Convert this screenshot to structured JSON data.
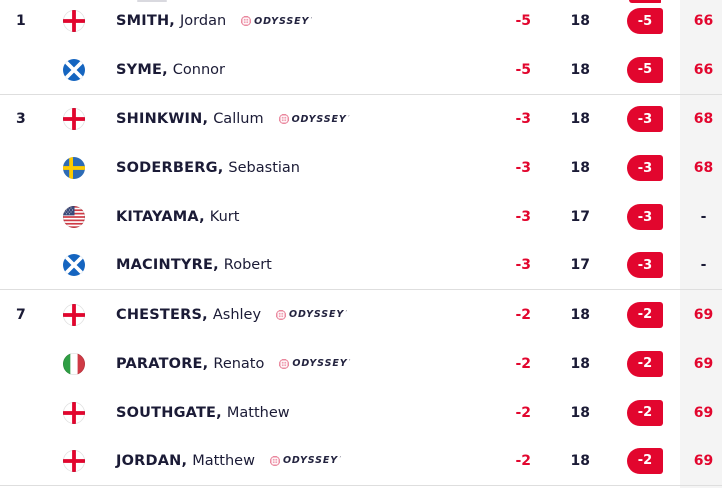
{
  "theme": {
    "accent_red": "#e2062e",
    "text_navy": "#1b1b36",
    "round_column_bg": "#f4f4f4",
    "separator": "#dedede"
  },
  "brand": {
    "odyssey_label": "ODYSSEY",
    "odyssey_tm": "’"
  },
  "rows": [
    {
      "pos": "1",
      "flag": "england",
      "surname": "SMITH,",
      "firstname": "Jordan",
      "odyssey": true,
      "today": "-5",
      "holes": "18",
      "topar": "-5",
      "round": "66",
      "group_end": false
    },
    {
      "pos": "",
      "flag": "scotland",
      "surname": "SYME,",
      "firstname": "Connor",
      "odyssey": false,
      "today": "-5",
      "holes": "18",
      "topar": "-5",
      "round": "66",
      "group_end": true
    },
    {
      "pos": "3",
      "flag": "england",
      "surname": "SHINKWIN,",
      "firstname": "Callum",
      "odyssey": true,
      "today": "-3",
      "holes": "18",
      "topar": "-3",
      "round": "68",
      "group_end": false
    },
    {
      "pos": "",
      "flag": "sweden",
      "surname": "SODERBERG,",
      "firstname": "Sebastian",
      "odyssey": false,
      "today": "-3",
      "holes": "18",
      "topar": "-3",
      "round": "68",
      "group_end": false
    },
    {
      "pos": "",
      "flag": "usa",
      "surname": "KITAYAMA,",
      "firstname": "Kurt",
      "odyssey": false,
      "today": "-3",
      "holes": "17",
      "topar": "-3",
      "round": "-",
      "group_end": false
    },
    {
      "pos": "",
      "flag": "scotland",
      "surname": "MACINTYRE,",
      "firstname": "Robert",
      "odyssey": false,
      "today": "-3",
      "holes": "17",
      "topar": "-3",
      "round": "-",
      "group_end": true
    },
    {
      "pos": "7",
      "flag": "england",
      "surname": "CHESTERS,",
      "firstname": "Ashley",
      "odyssey": true,
      "today": "-2",
      "holes": "18",
      "topar": "-2",
      "round": "69",
      "group_end": false
    },
    {
      "pos": "",
      "flag": "italy",
      "surname": "PARATORE,",
      "firstname": "Renato",
      "odyssey": true,
      "today": "-2",
      "holes": "18",
      "topar": "-2",
      "round": "69",
      "group_end": false
    },
    {
      "pos": "",
      "flag": "england",
      "surname": "SOUTHGATE,",
      "firstname": "Matthew",
      "odyssey": false,
      "today": "-2",
      "holes": "18",
      "topar": "-2",
      "round": "69",
      "group_end": false
    },
    {
      "pos": "",
      "flag": "england",
      "surname": "JORDAN,",
      "firstname": "Matthew",
      "odyssey": true,
      "today": "-2",
      "holes": "18",
      "topar": "-2",
      "round": "69",
      "group_end": true
    }
  ]
}
